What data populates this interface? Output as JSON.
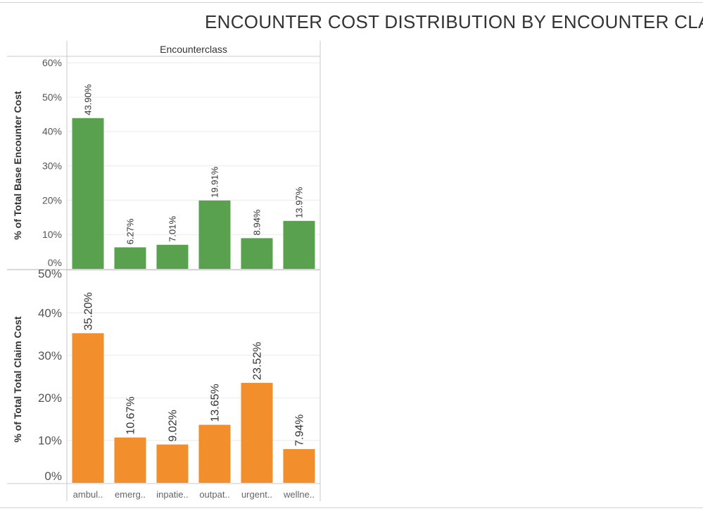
{
  "title": "ENCOUNTER COST DISTRIBUTION BY ENCOUNTER CLASS",
  "chart_data": [
    {
      "type": "bar",
      "title": "",
      "column_header": "Encounterclass",
      "ylabel": "% of Total Base Encounter Cost",
      "xlabel": "",
      "categories": [
        "ambul..",
        "emerg..",
        "inpatie..",
        "outpat..",
        "urgent..",
        "wellne.."
      ],
      "values": [
        43.9,
        6.27,
        7.01,
        19.91,
        8.94,
        13.97
      ],
      "value_labels": [
        "43.90%",
        "6.27%",
        "7.01%",
        "19.91%",
        "8.94%",
        "13.97%"
      ],
      "ylim": [
        0,
        62
      ],
      "yticks": [
        0,
        10,
        20,
        30,
        40,
        50,
        60
      ],
      "ytick_labels": [
        "0%",
        "10%",
        "20%",
        "30%",
        "40%",
        "50%",
        "60%"
      ],
      "grid": true,
      "color": "#59a14f"
    },
    {
      "type": "bar",
      "title": "",
      "ylabel": "% of Total Total Claim Cost",
      "xlabel": "",
      "categories": [
        "ambul..",
        "emerg..",
        "inpatie..",
        "outpat..",
        "urgent..",
        "wellne.."
      ],
      "values": [
        35.2,
        10.67,
        9.02,
        13.65,
        23.52,
        7.94
      ],
      "value_labels": [
        "35.20%",
        "10.67%",
        "9.02%",
        "13.65%",
        "23.52%",
        "7.94%"
      ],
      "ylim": [
        0,
        50
      ],
      "yticks": [
        0,
        10,
        20,
        30,
        40,
        50
      ],
      "ytick_labels": [
        "0%",
        "10%",
        "20%",
        "30%",
        "40%",
        "50%"
      ],
      "grid": true,
      "color": "#f28e2b"
    }
  ]
}
